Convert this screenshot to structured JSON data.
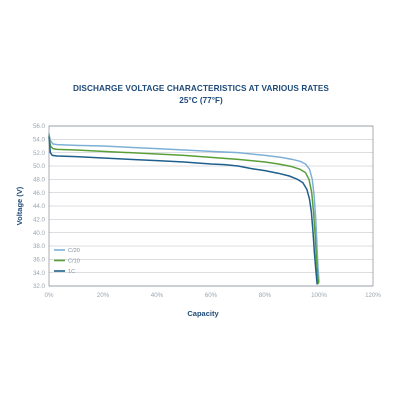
{
  "chart_data": {
    "type": "line",
    "title": "DISCHARGE VOLTAGE CHARACTERISTICS AT VARIOUS RATES",
    "subtitle": "25°C (77°F)",
    "xlabel": "Capacity",
    "ylabel": "Voltage (V)",
    "xlim": [
      0,
      120
    ],
    "ylim": [
      32.0,
      56.0
    ],
    "x_ticks": [
      0,
      20,
      40,
      60,
      80,
      100,
      120
    ],
    "x_tick_labels": [
      "0%",
      "20%",
      "40%",
      "60%",
      "80%",
      "100%",
      "120%"
    ],
    "y_ticks": [
      32,
      34,
      36,
      38,
      40,
      42,
      44,
      46,
      48,
      50,
      52,
      54,
      56
    ],
    "y_tick_labels": [
      "32.0",
      "34.0",
      "36.0",
      "38.0",
      "40.0",
      "42.0",
      "44.0",
      "46.0",
      "48.0",
      "50.0",
      "52.0",
      "54.0",
      "56.0"
    ],
    "grid": "horizontal",
    "legend_position": "lower-left",
    "series": [
      {
        "name": "C/20",
        "color": "#7eb0d6",
        "x": [
          0,
          0.5,
          1.5,
          3,
          10,
          20,
          30,
          40,
          50,
          60,
          70,
          80,
          86,
          90,
          93,
          95,
          96.5,
          97.5,
          98.2,
          98.8,
          99.2,
          99.6,
          100
        ],
        "y": [
          54.8,
          53.8,
          53.3,
          53.2,
          53.1,
          53.0,
          52.8,
          52.6,
          52.4,
          52.2,
          52.0,
          51.6,
          51.3,
          51.0,
          50.7,
          50.3,
          49.5,
          48.0,
          45.5,
          42.0,
          38.5,
          35.0,
          32.6
        ]
      },
      {
        "name": "C/10",
        "color": "#5a9e3a",
        "x": [
          0,
          0.5,
          1.5,
          3,
          10,
          20,
          30,
          40,
          50,
          60,
          70,
          80,
          85,
          90,
          93,
          95,
          96.3,
          97.3,
          98,
          98.6,
          99,
          99.4,
          99.8
        ],
        "y": [
          54.5,
          53.0,
          52.6,
          52.5,
          52.4,
          52.2,
          52.0,
          51.8,
          51.6,
          51.3,
          51.0,
          50.6,
          50.3,
          49.9,
          49.5,
          49.0,
          48.0,
          46.0,
          43.0,
          39.5,
          36.5,
          34.0,
          32.4
        ]
      },
      {
        "name": "1C",
        "color": "#1e5f8c",
        "x": [
          0,
          0.5,
          1.2,
          3,
          10,
          20,
          30,
          40,
          50,
          60,
          65,
          70,
          75,
          80,
          85,
          89,
          92,
          94,
          95.5,
          96.5,
          97.2,
          97.8,
          98.3,
          98.8,
          99.3
        ],
        "y": [
          54.3,
          52.0,
          51.6,
          51.5,
          51.4,
          51.2,
          51.0,
          50.8,
          50.6,
          50.3,
          50.2,
          50.0,
          49.6,
          49.3,
          48.9,
          48.5,
          48.0,
          47.5,
          46.5,
          45.0,
          43.0,
          40.0,
          37.0,
          34.5,
          32.3
        ]
      }
    ]
  }
}
